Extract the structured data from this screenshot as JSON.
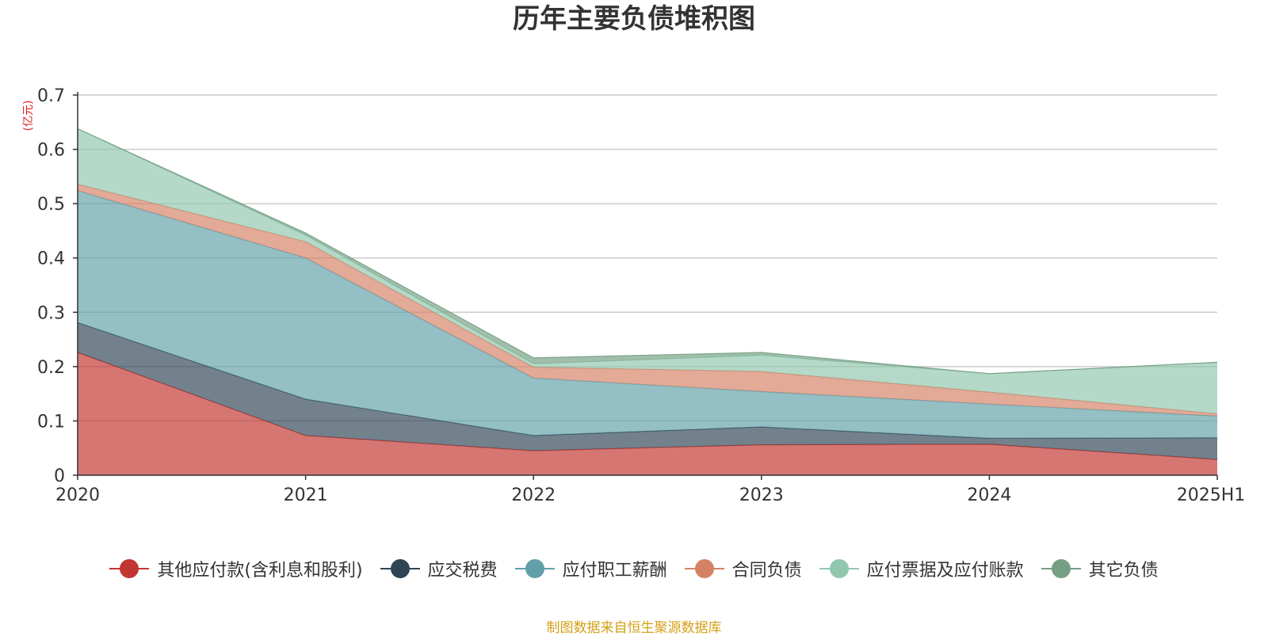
{
  "chart_data": {
    "type": "area",
    "stacked": true,
    "title": "历年主要负债堆积图",
    "ylabel": "(亿元)",
    "xlabel": "",
    "ylim": [
      0,
      0.7
    ],
    "yticks": [
      0,
      0.1,
      0.2,
      0.3,
      0.4,
      0.5,
      0.6,
      0.7
    ],
    "ytick_labels": [
      "0",
      "0.1",
      "0.2",
      "0.3",
      "0.4",
      "0.5",
      "0.6",
      "0.7"
    ],
    "grid": true,
    "legend_position": "bottom",
    "categories": [
      "2020",
      "2021",
      "2022",
      "2023",
      "2024",
      "2025H1"
    ],
    "series": [
      {
        "name": "其他应付款(含利息和股利)",
        "color": "#c23531",
        "values": [
          0.226,
          0.073,
          0.045,
          0.056,
          0.057,
          0.029
        ]
      },
      {
        "name": "应交税费",
        "color": "#2f4554",
        "values": [
          0.055,
          0.067,
          0.028,
          0.033,
          0.011,
          0.04
        ]
      },
      {
        "name": "应付职工薪酬",
        "color": "#61a0a8",
        "values": [
          0.243,
          0.26,
          0.106,
          0.065,
          0.063,
          0.04
        ]
      },
      {
        "name": "合同负债",
        "color": "#d48265",
        "values": [
          0.012,
          0.03,
          0.02,
          0.037,
          0.022,
          0.004
        ]
      },
      {
        "name": "应付票据及应付账款",
        "color": "#91c7ae",
        "values": [
          0.102,
          0.012,
          0.006,
          0.03,
          0.034,
          0.095
        ]
      },
      {
        "name": "其它负债",
        "color": "#749f83",
        "values": [
          0.0,
          0.004,
          0.011,
          0.005,
          0.0,
          0.0
        ]
      }
    ]
  },
  "footer": "制图数据来自恒生聚源数据库"
}
